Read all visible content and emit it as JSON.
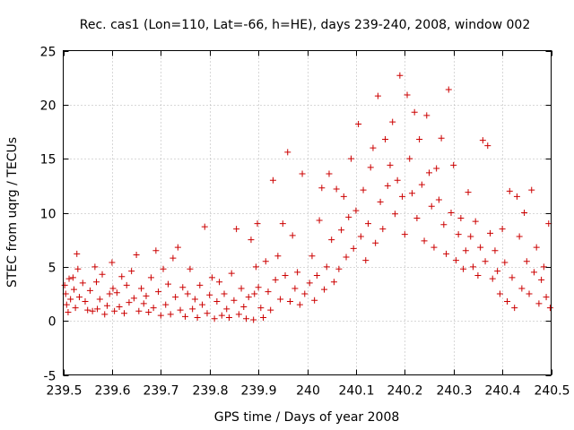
{
  "chart_data": {
    "type": "scatter",
    "title": "Rec. cas1 (Lon=110, Lat=-66, h=HE), days 239-240, 2008, window 002",
    "xlabel": "GPS time / Days of year 2008",
    "ylabel": "STEC from uqrg / TECUs",
    "xlim": [
      239.5,
      240.5
    ],
    "ylim": [
      -5,
      25
    ],
    "xticks": [
      239.5,
      239.6,
      239.7,
      239.8,
      239.9,
      240.0,
      240.1,
      240.2,
      240.3,
      240.4,
      240.5
    ],
    "xtick_labels": [
      "239.5",
      "239.6",
      "239.7",
      "239.8",
      "239.9",
      "240",
      "240.1",
      "240.2",
      "240.3",
      "240.4",
      "240.5"
    ],
    "yticks": [
      -5,
      0,
      5,
      10,
      15,
      20,
      25
    ],
    "ytick_labels": [
      "-5",
      "0",
      "5",
      "10",
      "15",
      "20",
      "25"
    ],
    "grid": true,
    "marker": "plus",
    "color": "#cc0000",
    "series": [
      {
        "points": [
          [
            239.503,
            3.3
          ],
          [
            239.505,
            2.5
          ],
          [
            239.507,
            1.5
          ],
          [
            239.51,
            0.8
          ],
          [
            239.512,
            3.9
          ],
          [
            239.515,
            2.0
          ],
          [
            239.52,
            4.0
          ],
          [
            239.522,
            2.9
          ],
          [
            239.525,
            1.2
          ],
          [
            239.528,
            6.2
          ],
          [
            239.53,
            4.8
          ],
          [
            239.533,
            2.2
          ],
          [
            239.54,
            3.5
          ],
          [
            239.545,
            1.8
          ],
          [
            239.55,
            1.0
          ],
          [
            239.555,
            2.8
          ],
          [
            239.56,
            0.9
          ],
          [
            239.565,
            5.0
          ],
          [
            239.568,
            3.6
          ],
          [
            239.57,
            1.1
          ],
          [
            239.575,
            2.0
          ],
          [
            239.58,
            4.3
          ],
          [
            239.585,
            0.6
          ],
          [
            239.59,
            1.4
          ],
          [
            239.595,
            2.5
          ],
          [
            239.6,
            5.4
          ],
          [
            239.602,
            3.0
          ],
          [
            239.605,
            0.9
          ],
          [
            239.61,
            2.6
          ],
          [
            239.615,
            1.3
          ],
          [
            239.62,
            4.1
          ],
          [
            239.625,
            0.7
          ],
          [
            239.63,
            3.3
          ],
          [
            239.635,
            1.7
          ],
          [
            239.64,
            4.6
          ],
          [
            239.645,
            2.1
          ],
          [
            239.65,
            6.1
          ],
          [
            239.655,
            0.9
          ],
          [
            239.66,
            3.0
          ],
          [
            239.665,
            1.6
          ],
          [
            239.67,
            2.3
          ],
          [
            239.675,
            0.8
          ],
          [
            239.68,
            4.0
          ],
          [
            239.685,
            1.2
          ],
          [
            239.69,
            6.5
          ],
          [
            239.695,
            2.7
          ],
          [
            239.7,
            0.5
          ],
          [
            239.705,
            4.8
          ],
          [
            239.71,
            1.5
          ],
          [
            239.715,
            3.4
          ],
          [
            239.72,
            0.6
          ],
          [
            239.725,
            5.8
          ],
          [
            239.73,
            2.2
          ],
          [
            239.735,
            6.8
          ],
          [
            239.74,
            1.0
          ],
          [
            239.745,
            3.1
          ],
          [
            239.75,
            0.4
          ],
          [
            239.755,
            2.5
          ],
          [
            239.76,
            4.8
          ],
          [
            239.765,
            1.1
          ],
          [
            239.77,
            2.0
          ],
          [
            239.775,
            0.3
          ],
          [
            239.78,
            3.3
          ],
          [
            239.785,
            1.5
          ],
          [
            239.79,
            8.7
          ],
          [
            239.795,
            0.7
          ],
          [
            239.8,
            2.4
          ],
          [
            239.805,
            4.0
          ],
          [
            239.81,
            0.2
          ],
          [
            239.815,
            1.8
          ],
          [
            239.82,
            3.6
          ],
          [
            239.825,
            0.5
          ],
          [
            239.83,
            2.5
          ],
          [
            239.835,
            1.1
          ],
          [
            239.84,
            0.3
          ],
          [
            239.845,
            4.4
          ],
          [
            239.85,
            1.9
          ],
          [
            239.855,
            8.5
          ],
          [
            239.86,
            0.6
          ],
          [
            239.865,
            3.0
          ],
          [
            239.87,
            1.3
          ],
          [
            239.875,
            0.2
          ],
          [
            239.88,
            2.2
          ],
          [
            239.885,
            7.5
          ],
          [
            239.89,
            0.1
          ],
          [
            239.892,
            2.5
          ],
          [
            239.895,
            5.0
          ],
          [
            239.898,
            9.0
          ],
          [
            239.9,
            3.1
          ],
          [
            239.905,
            1.2
          ],
          [
            239.91,
            0.3
          ],
          [
            239.915,
            5.5
          ],
          [
            239.92,
            2.7
          ],
          [
            239.925,
            1.0
          ],
          [
            239.93,
            13.0
          ],
          [
            239.935,
            3.8
          ],
          [
            239.94,
            6.0
          ],
          [
            239.945,
            2.0
          ],
          [
            239.95,
            9.0
          ],
          [
            239.955,
            4.2
          ],
          [
            239.96,
            15.6
          ],
          [
            239.965,
            1.8
          ],
          [
            239.97,
            7.9
          ],
          [
            239.975,
            3.0
          ],
          [
            239.98,
            4.5
          ],
          [
            239.985,
            1.5
          ],
          [
            239.99,
            13.6
          ],
          [
            239.995,
            2.5
          ],
          [
            240.005,
            3.5
          ],
          [
            240.01,
            6.0
          ],
          [
            240.015,
            1.9
          ],
          [
            240.02,
            4.2
          ],
          [
            240.025,
            9.3
          ],
          [
            240.03,
            12.3
          ],
          [
            240.035,
            2.9
          ],
          [
            240.04,
            5.0
          ],
          [
            240.045,
            13.6
          ],
          [
            240.05,
            7.5
          ],
          [
            240.055,
            3.6
          ],
          [
            240.06,
            12.2
          ],
          [
            240.065,
            4.8
          ],
          [
            240.07,
            8.4
          ],
          [
            240.075,
            11.5
          ],
          [
            240.08,
            5.9
          ],
          [
            240.085,
            9.6
          ],
          [
            240.09,
            15.0
          ],
          [
            240.095,
            6.7
          ],
          [
            240.1,
            10.2
          ],
          [
            240.105,
            18.2
          ],
          [
            240.11,
            7.8
          ],
          [
            240.115,
            12.1
          ],
          [
            240.12,
            5.6
          ],
          [
            240.125,
            9.0
          ],
          [
            240.13,
            14.2
          ],
          [
            240.135,
            16.0
          ],
          [
            240.14,
            7.2
          ],
          [
            240.145,
            20.8
          ],
          [
            240.15,
            11.0
          ],
          [
            240.155,
            8.5
          ],
          [
            240.16,
            16.8
          ],
          [
            240.165,
            12.5
          ],
          [
            240.17,
            14.4
          ],
          [
            240.175,
            18.4
          ],
          [
            240.18,
            9.9
          ],
          [
            240.185,
            13.0
          ],
          [
            240.19,
            22.7
          ],
          [
            240.195,
            11.5
          ],
          [
            240.2,
            8.0
          ],
          [
            240.205,
            20.9
          ],
          [
            240.21,
            15.0
          ],
          [
            240.215,
            11.8
          ],
          [
            240.22,
            19.3
          ],
          [
            240.225,
            9.5
          ],
          [
            240.23,
            16.8
          ],
          [
            240.235,
            12.6
          ],
          [
            240.24,
            7.4
          ],
          [
            240.245,
            19.0
          ],
          [
            240.25,
            13.7
          ],
          [
            240.255,
            10.6
          ],
          [
            240.26,
            6.8
          ],
          [
            240.265,
            14.1
          ],
          [
            240.27,
            11.2
          ],
          [
            240.275,
            16.9
          ],
          [
            240.28,
            8.9
          ],
          [
            240.285,
            6.2
          ],
          [
            240.29,
            21.4
          ],
          [
            240.295,
            10.0
          ],
          [
            240.3,
            14.4
          ],
          [
            240.305,
            5.6
          ],
          [
            240.31,
            8.0
          ],
          [
            240.315,
            9.5
          ],
          [
            240.32,
            4.8
          ],
          [
            240.325,
            6.5
          ],
          [
            240.33,
            11.9
          ],
          [
            240.335,
            7.8
          ],
          [
            240.34,
            5.0
          ],
          [
            240.345,
            9.2
          ],
          [
            240.35,
            4.2
          ],
          [
            240.355,
            6.8
          ],
          [
            240.36,
            16.7
          ],
          [
            240.365,
            5.5
          ],
          [
            240.37,
            16.2
          ],
          [
            240.375,
            8.1
          ],
          [
            240.38,
            3.9
          ],
          [
            240.385,
            6.5
          ],
          [
            240.39,
            4.6
          ],
          [
            240.395,
            2.5
          ],
          [
            240.4,
            8.5
          ],
          [
            240.405,
            5.4
          ],
          [
            240.41,
            1.8
          ],
          [
            240.415,
            12.0
          ],
          [
            240.42,
            4.0
          ],
          [
            240.425,
            1.2
          ],
          [
            240.43,
            11.5
          ],
          [
            240.435,
            7.8
          ],
          [
            240.44,
            3.0
          ],
          [
            240.445,
            10.0
          ],
          [
            240.45,
            5.5
          ],
          [
            240.455,
            2.5
          ],
          [
            240.46,
            12.1
          ],
          [
            240.465,
            4.5
          ],
          [
            240.47,
            6.8
          ],
          [
            240.475,
            1.6
          ],
          [
            240.48,
            3.8
          ],
          [
            240.485,
            5.0
          ],
          [
            240.49,
            2.2
          ],
          [
            240.495,
            9.0
          ],
          [
            240.498,
            1.2
          ]
        ]
      }
    ]
  }
}
